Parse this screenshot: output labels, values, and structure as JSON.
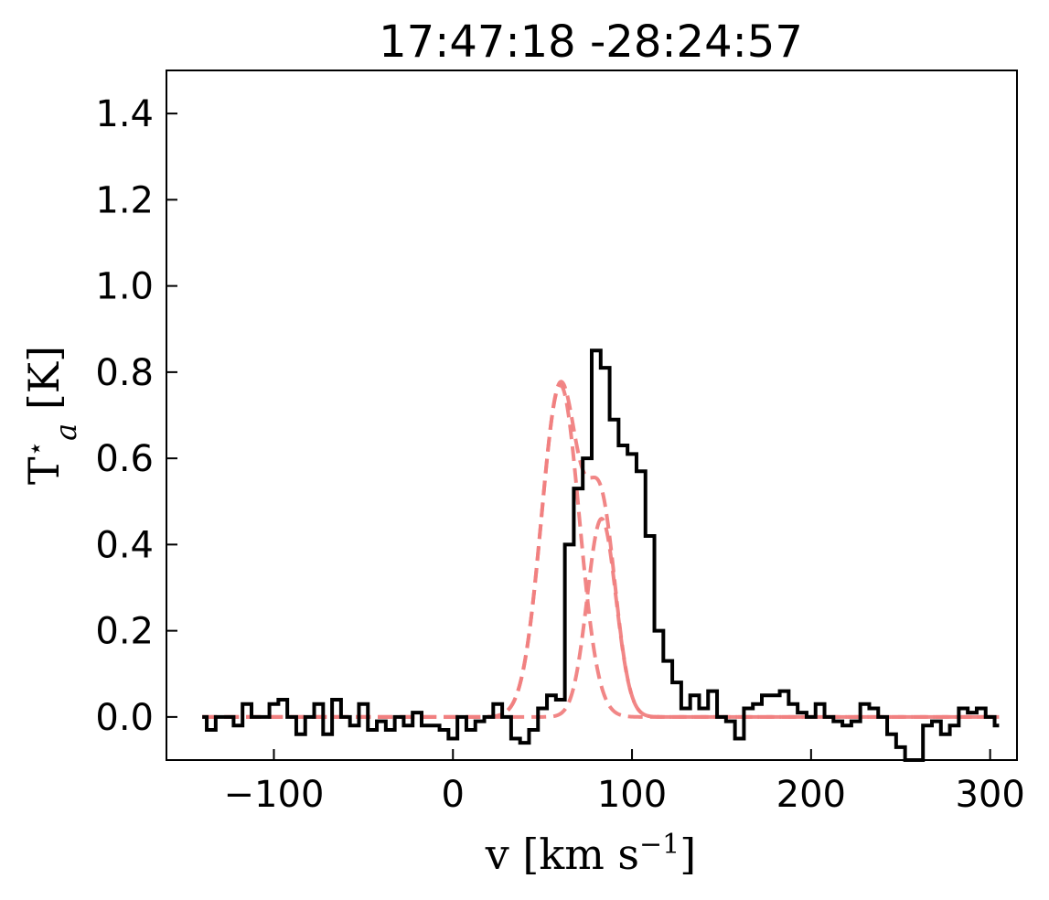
{
  "chart_data": {
    "type": "line",
    "title": "17:47:18 -28:24:57",
    "xlabel": {
      "main": "v [km s",
      "sup": "−1",
      "end": "]"
    },
    "ylabel": {
      "main": "T",
      "sup": "⋆",
      "sub": "a",
      "end": " [K]"
    },
    "xlim": [
      -160,
      315
    ],
    "ylim": [
      -0.1,
      1.5
    ],
    "xticks": [
      -100,
      0,
      100,
      200,
      300
    ],
    "xtick_labels": [
      "−100",
      "0",
      "100",
      "200",
      "300"
    ],
    "yticks": [
      0.0,
      0.2,
      0.4,
      0.6,
      0.8,
      1.0,
      1.2,
      1.4
    ],
    "ytick_labels": [
      "0.0",
      "0.2",
      "0.4",
      "0.6",
      "0.8",
      "1.0",
      "1.2",
      "1.4"
    ],
    "grid": false,
    "series": [
      {
        "kind": "step",
        "color": "#000000",
        "x0": -140,
        "dx": 5,
        "y": [
          0.0,
          -0.03,
          0.0,
          0.0,
          -0.02,
          0.03,
          0.0,
          0.0,
          0.03,
          0.04,
          0.0,
          -0.04,
          0.0,
          0.03,
          -0.04,
          0.04,
          0.0,
          -0.02,
          0.03,
          -0.03,
          -0.01,
          -0.03,
          0.0,
          -0.02,
          0.01,
          -0.02,
          -0.02,
          -0.03,
          -0.05,
          0.0,
          -0.03,
          -0.01,
          0.0,
          0.03,
          0.0,
          -0.05,
          -0.06,
          -0.03,
          0.02,
          0.05,
          0.04,
          0.4,
          0.53,
          0.6,
          0.85,
          0.81,
          0.69,
          0.63,
          0.61,
          0.57,
          0.42,
          0.2,
          0.13,
          0.08,
          0.02,
          0.05,
          0.02,
          0.06,
          0.0,
          -0.01,
          -0.05,
          0.02,
          0.03,
          0.05,
          0.05,
          0.06,
          0.03,
          0.01,
          0.0,
          0.03,
          0.0,
          -0.01,
          -0.02,
          -0.01,
          0.03,
          0.02,
          0.0,
          -0.04,
          -0.07,
          -0.1,
          -0.1,
          -0.02,
          -0.01,
          -0.04,
          -0.02,
          0.02,
          0.01,
          0.02,
          0.0,
          -0.02
        ]
      },
      {
        "kind": "gaussian",
        "color": "#f08080",
        "amplitude": 0.77,
        "center": 60,
        "sigma": 10.5
      },
      {
        "kind": "gaussian",
        "color": "#f08080",
        "amplitude": 0.46,
        "center": 83,
        "sigma": 8
      },
      {
        "kind": "sum",
        "color": "#f08080",
        "components": [
          1,
          2
        ]
      }
    ]
  }
}
